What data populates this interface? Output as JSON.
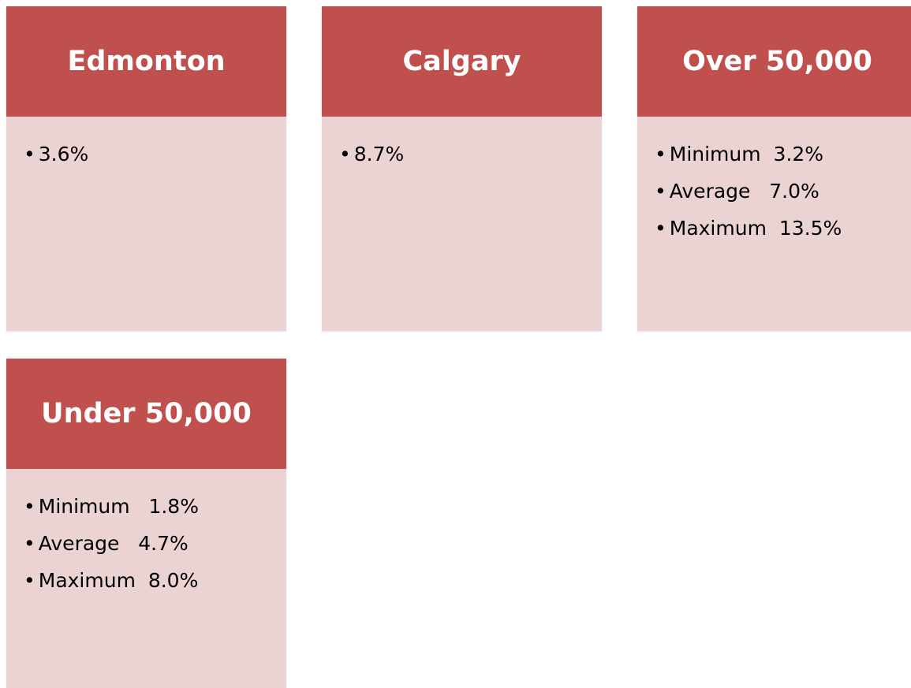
{
  "cards": [
    {
      "title": "Edmonton",
      "items": [
        "3.6%"
      ]
    },
    {
      "title": "Calgary",
      "items": [
        "8.7%"
      ]
    },
    {
      "title": "Over 50,000",
      "items": [
        "Minimum  3.2%",
        "Average   7.0%",
        "Maximum  13.5%"
      ]
    },
    {
      "title": "Under 50,000",
      "items": [
        "Minimum   1.8%",
        "Average   4.7%",
        "Maximum  8.0%"
      ]
    }
  ]
}
